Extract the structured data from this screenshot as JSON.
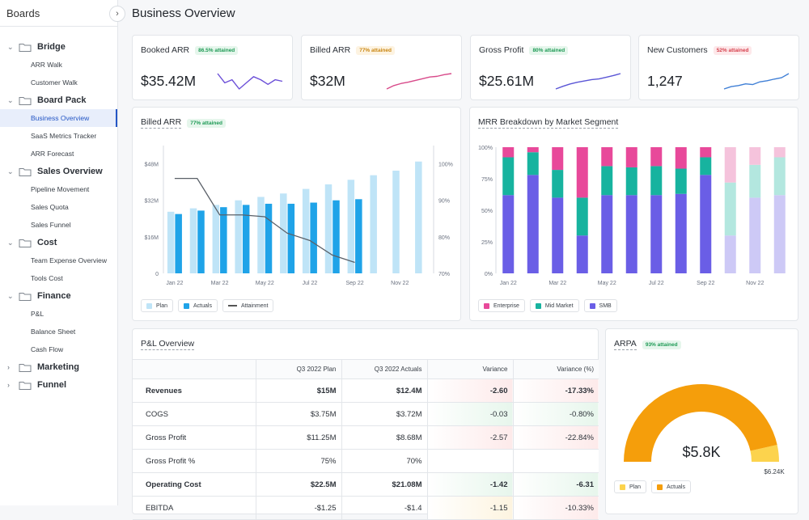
{
  "sidebar": {
    "title": "Boards",
    "groups": [
      {
        "label": "Bridge",
        "items": [
          "ARR Walk",
          "Customer Walk"
        ]
      },
      {
        "label": "Board Pack",
        "items": [
          "Business Overview",
          "SaaS Metrics Tracker",
          "ARR Forecast"
        ]
      },
      {
        "label": "Sales Overview",
        "items": [
          "Pipeline Movement",
          "Sales Quota",
          "Sales Funnel"
        ]
      },
      {
        "label": "Cost",
        "items": [
          "Team Expense Overview",
          "Tools Cost"
        ]
      },
      {
        "label": "Finance",
        "items": [
          "P&L",
          "Balance Sheet",
          "Cash Flow"
        ]
      },
      {
        "label": "Marketing",
        "items": []
      },
      {
        "label": "Funnel",
        "items": []
      }
    ],
    "active_item": "Business Overview"
  },
  "page": {
    "title": "Business Overview"
  },
  "kpis": [
    {
      "title": "Booked ARR",
      "badge": "86.5% attained",
      "badge_tone": "green",
      "value": "$35.42M",
      "color": "#6b4fd8",
      "spark": [
        6,
        3,
        4,
        1,
        3,
        5,
        4,
        2.5,
        4,
        3.5
      ]
    },
    {
      "title": "Billed ARR",
      "badge": "77% attained",
      "badge_tone": "amber",
      "value": "$32M",
      "color": "#d84a8a",
      "spark": [
        1,
        2,
        2.6,
        3,
        3.5,
        4,
        4.5,
        4.7,
        5.2,
        5.5
      ]
    },
    {
      "title": "Gross Profit",
      "badge": "80% attained",
      "badge_tone": "green",
      "value": "$25.61M",
      "color": "#5a55d6",
      "spark": [
        1,
        1.8,
        2.5,
        3,
        3.4,
        3.8,
        4,
        4.5,
        5,
        5.6
      ]
    },
    {
      "title": "New Customers",
      "badge": "52% attained",
      "badge_tone": "red",
      "value": "1,247",
      "color": "#3f7fd6",
      "spark": [
        0.5,
        1.2,
        1.5,
        2,
        1.8,
        2.6,
        2.9,
        3.4,
        3.8,
        5
      ]
    }
  ],
  "billed_chart": {
    "title": "Billed ARR",
    "badge": "77% attained",
    "legend": [
      "Plan",
      "Actuals",
      "Attainment"
    ],
    "colors": {
      "plan": "#bfe4f7",
      "actuals": "#1fa3e8",
      "attainment": "#5a6068"
    }
  },
  "mrr_chart": {
    "title": "MRR Breakdown by Market Segment",
    "legend": [
      "Enterprise",
      "Mid Market",
      "SMB"
    ],
    "colors": {
      "enterprise": "#e8499a",
      "mid": "#17b39f",
      "smb": "#6a5ee6",
      "enterprise_f": "#f5c3dc",
      "mid_f": "#b3e7df",
      "smb_f": "#cdc9f6"
    }
  },
  "chart_data": [
    {
      "type": "bar",
      "title": "Billed ARR",
      "categories": [
        "Jan 22",
        "Feb 22",
        "Mar 22",
        "Apr 22",
        "May 22",
        "Jun 22",
        "Jul 22",
        "Aug 22",
        "Sep 22",
        "Oct 22",
        "Nov 22",
        "Dec 22"
      ],
      "x_tick_labels": [
        "Jan 22",
        "Mar 22",
        "May 22",
        "Jul 22",
        "Sep 22",
        "Nov 22"
      ],
      "series": [
        {
          "name": "Plan",
          "values": [
            27,
            28.5,
            30,
            32,
            33.5,
            35,
            37,
            39,
            41,
            43,
            45,
            49
          ]
        },
        {
          "name": "Actuals",
          "values": [
            26,
            27.5,
            29,
            30,
            30.5,
            30.5,
            31,
            32,
            32.5,
            null,
            null,
            null
          ]
        },
        {
          "name": "Attainment",
          "axis": "right",
          "values": [
            96,
            96,
            86,
            86,
            85.5,
            81,
            79,
            75,
            73,
            null,
            null,
            null
          ]
        }
      ],
      "ylim": [
        0,
        56
      ],
      "y_ticks": [
        0,
        16,
        32,
        48
      ],
      "y_tick_labels": [
        "0",
        "$16M",
        "$32M",
        "$48M"
      ],
      "y2lim": [
        70,
        105
      ],
      "y2_ticks": [
        70,
        80,
        90,
        100
      ],
      "y2_tick_labels": [
        "70%",
        "80%",
        "90%",
        "100%"
      ]
    },
    {
      "type": "bar",
      "stacked": true,
      "title": "MRR Breakdown by Market Segment",
      "categories": [
        "Jan 22",
        "Feb 22",
        "Mar 22",
        "Apr 22",
        "May 22",
        "Jun 22",
        "Jul 22",
        "Aug 22",
        "Sep 22",
        "Oct 22",
        "Nov 22",
        "Dec 22"
      ],
      "x_tick_labels": [
        "Jan 22",
        "Mar 22",
        "May 22",
        "Jul 22",
        "Sep 22",
        "Nov 22"
      ],
      "forecast_from_index": 9,
      "series": [
        {
          "name": "SMB",
          "values": [
            62,
            78,
            60,
            30,
            62,
            62,
            62,
            63,
            78,
            30,
            60,
            62
          ]
        },
        {
          "name": "Mid Market",
          "values": [
            30,
            18,
            22,
            30,
            23,
            22,
            23,
            20,
            14,
            42,
            26,
            30
          ]
        },
        {
          "name": "Enterprise",
          "values": [
            8,
            4,
            18,
            40,
            15,
            16,
            15,
            17,
            8,
            28,
            14,
            8
          ]
        }
      ],
      "ylim": [
        0,
        100
      ],
      "y_tick_labels": [
        "0%",
        "25%",
        "50%",
        "75%",
        "100%"
      ]
    }
  ],
  "pl": {
    "title": "P&L Overview",
    "columns": [
      "",
      "Q3 2022 Plan",
      "Q3 2022 Actuals",
      "Variance",
      "Variance (%)"
    ],
    "rows": [
      {
        "label": "Revenues",
        "bold": true,
        "plan": "$15M",
        "actuals": "$12.4M",
        "var": "-2.60",
        "var_pct": "-17.33%",
        "tone": "neg",
        "tone_pct": "neg"
      },
      {
        "label": "COGS",
        "bold": false,
        "plan": "$3.75M",
        "actuals": "$3.72M",
        "var": "-0.03",
        "var_pct": "-0.80%",
        "tone": "pos",
        "tone_pct": "pos"
      },
      {
        "label": "Gross Profit",
        "bold": false,
        "plan": "$11.25M",
        "actuals": "$8.68M",
        "var": "-2.57",
        "var_pct": "-22.84%",
        "tone": "neg",
        "tone_pct": "neg"
      },
      {
        "label": "Gross Profit %",
        "bold": false,
        "plan": "75%",
        "actuals": "70%",
        "var": "",
        "var_pct": "",
        "tone": "plain",
        "tone_pct": "plain"
      },
      {
        "label": "Operating Cost",
        "bold": true,
        "plan": "$22.5M",
        "actuals": "$21.08M",
        "var": "-1.42",
        "var_pct": "-6.31",
        "tone": "pos",
        "tone_pct": "pos"
      },
      {
        "label": "EBITDA",
        "bold": false,
        "plan": "-$1.25",
        "actuals": "-$1.4",
        "var": "-1.15",
        "var_pct": "-10.33%",
        "tone": "wrn",
        "tone_pct": "neg"
      }
    ]
  },
  "arpa": {
    "title": "ARPA",
    "badge": "93% attained",
    "value": "$5.8K",
    "target_label": "$6.24K",
    "attained_fraction": 0.93,
    "legend": [
      "Plan",
      "Actuals"
    ],
    "colors": {
      "plan": "#fcd34d",
      "actuals": "#f59e0b"
    }
  }
}
